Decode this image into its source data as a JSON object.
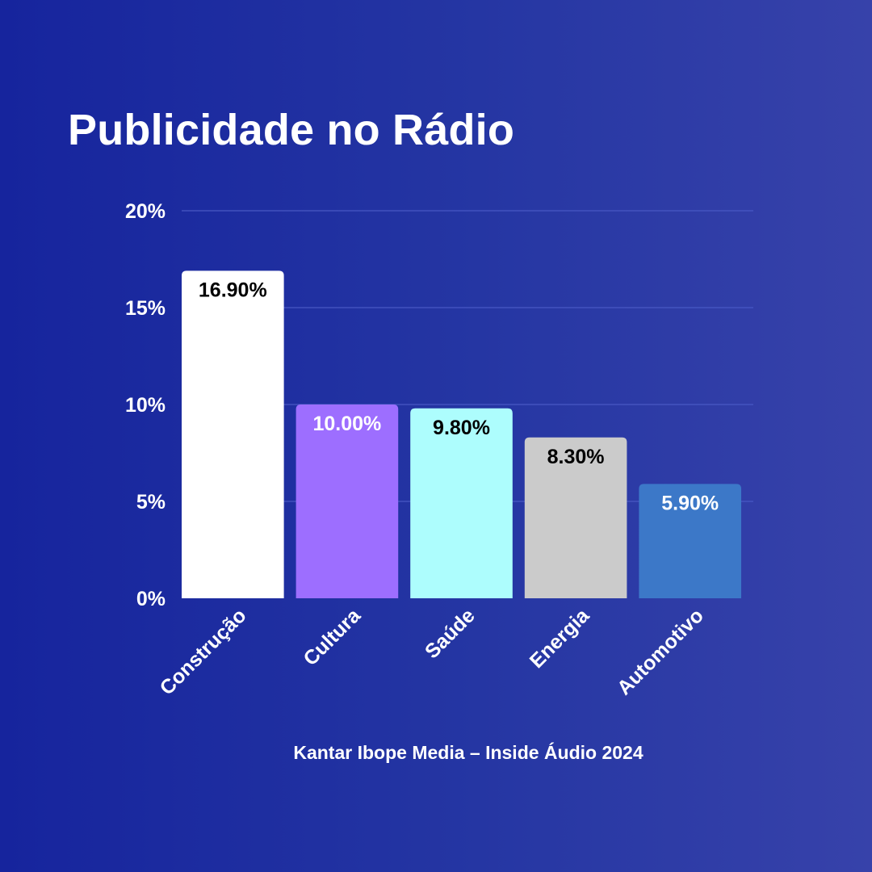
{
  "title": "Publicidade no Rádio",
  "source": "Kantar Ibope Media – Inside Áudio 2024",
  "chart_data": {
    "type": "bar",
    "title": "Publicidade no Rádio",
    "categories": [
      "Construção",
      "Cultura",
      "Saúde",
      "Energia",
      "Automotivo"
    ],
    "values": [
      16.9,
      10.0,
      9.8,
      8.3,
      5.9
    ],
    "value_labels": [
      "16.90%",
      "10.00%",
      "9.80%",
      "8.30%",
      "5.90%"
    ],
    "bar_colors": [
      "#ffffff",
      "#9d6eff",
      "#adfdfd",
      "#cbcbcb",
      "#3c78c8"
    ],
    "label_colors": [
      "#000000",
      "#ffffff",
      "#000000",
      "#000000",
      "#ffffff"
    ],
    "y_ticks": [
      0,
      5,
      10,
      15,
      20
    ],
    "y_tick_labels": [
      "0%",
      "5%",
      "10%",
      "15%",
      "20%"
    ],
    "ylim": [
      0,
      20
    ],
    "grid": true,
    "legend": "none"
  }
}
